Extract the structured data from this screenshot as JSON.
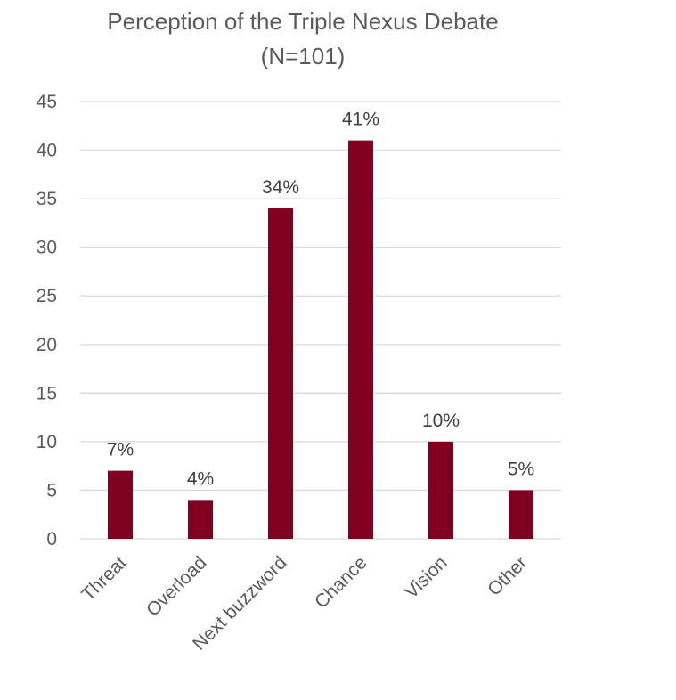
{
  "chart_data": {
    "type": "bar",
    "title": "Perception of the Triple Nexus Debate",
    "subtitle": "(N=101)",
    "categories": [
      "Threat",
      "Overload",
      "Next buzzword",
      "Chance",
      "Vision",
      "Other"
    ],
    "values": [
      7,
      4,
      34,
      41,
      10,
      5
    ],
    "data_labels": [
      "7%",
      "4%",
      "34%",
      "41%",
      "10%",
      "5%"
    ],
    "ylim": [
      0,
      45
    ],
    "yticks": [
      0,
      5,
      10,
      15,
      20,
      25,
      30,
      35,
      40,
      45
    ],
    "xlabel": "",
    "ylabel": "",
    "grid": true,
    "legend": "none",
    "bar_color": "#800020"
  }
}
